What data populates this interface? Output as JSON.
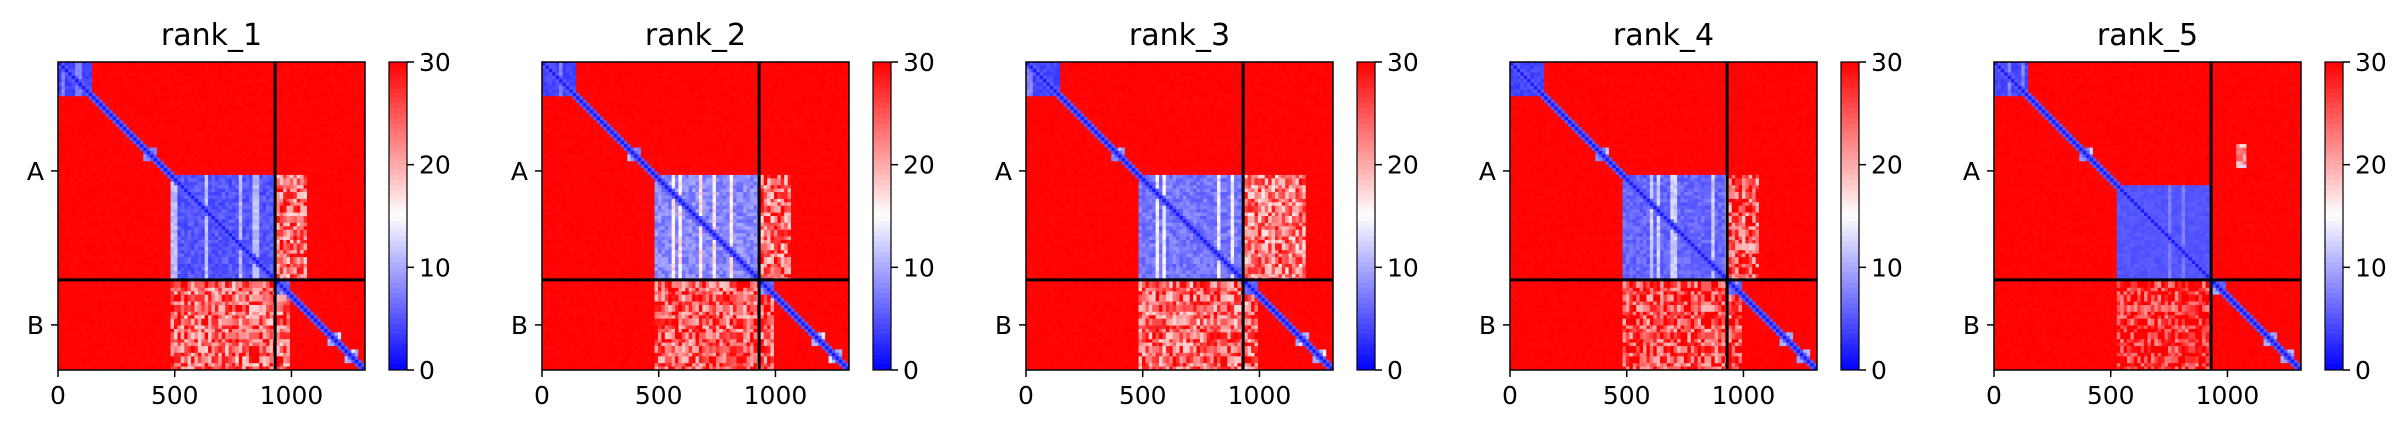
{
  "chart_data": {
    "type": "heatmap",
    "colormap": {
      "name": "bwr",
      "low_color": "#0000ff",
      "mid_color": "#ffffff",
      "high_color": "#ff0000",
      "vmin": 0,
      "vmax": 30,
      "ticks": [
        "0",
        "10",
        "20",
        "30"
      ]
    },
    "x_range": [
      0,
      1315
    ],
    "x_ticks": [
      {
        "value": 0,
        "label": "0"
      },
      {
        "value": 500,
        "label": "500"
      },
      {
        "value": 1000,
        "label": "1000"
      }
    ],
    "chains": [
      {
        "label": "A",
        "start": 0,
        "end": 930
      },
      {
        "label": "B",
        "start": 930,
        "end": 1315
      }
    ],
    "panels": [
      {
        "title": "rank_1",
        "blocks": [
          {
            "range": [
              0,
              150
            ],
            "mean": 4
          },
          {
            "range": [
              360,
              420
            ],
            "mean": 8
          },
          {
            "range": [
              480,
              930
            ],
            "mean": 5,
            "texture": 0.5
          },
          {
            "range": [
              930,
              1000
            ],
            "mean": 6
          },
          {
            "range": [
              1150,
              1210
            ],
            "mean": 10
          },
          {
            "range": [
              1230,
              1290
            ],
            "mean": 10
          }
        ],
        "off_blocks": [
          {
            "rows": [
              930,
              1315
            ],
            "cols": [
              480,
              1000
            ],
            "mean": 24
          },
          {
            "rows": [
              480,
              930
            ],
            "cols": [
              930,
              1060
            ],
            "mean": 24
          }
        ]
      },
      {
        "title": "rank_2",
        "blocks": [
          {
            "range": [
              0,
              150
            ],
            "mean": 4
          },
          {
            "range": [
              360,
              420
            ],
            "mean": 8
          },
          {
            "range": [
              480,
              930
            ],
            "mean": 8,
            "texture": 0.7
          },
          {
            "range": [
              930,
              1000
            ],
            "mean": 6
          },
          {
            "range": [
              1150,
              1210
            ],
            "mean": 10
          },
          {
            "range": [
              1230,
              1290
            ],
            "mean": 10
          }
        ],
        "off_blocks": [
          {
            "rows": [
              930,
              1315
            ],
            "cols": [
              480,
              1000
            ],
            "mean": 25
          },
          {
            "rows": [
              480,
              930
            ],
            "cols": [
              930,
              1060
            ],
            "mean": 24
          }
        ]
      },
      {
        "title": "rank_3",
        "blocks": [
          {
            "range": [
              0,
              150
            ],
            "mean": 4
          },
          {
            "range": [
              360,
              420
            ],
            "mean": 8
          },
          {
            "range": [
              480,
              930
            ],
            "mean": 7,
            "texture": 0.6
          },
          {
            "range": [
              930,
              1000
            ],
            "mean": 6
          },
          {
            "range": [
              1150,
              1210
            ],
            "mean": 10
          },
          {
            "range": [
              1230,
              1290
            ],
            "mean": 10
          }
        ],
        "off_blocks": [
          {
            "rows": [
              930,
              1315
            ],
            "cols": [
              480,
              1000
            ],
            "mean": 24
          },
          {
            "rows": [
              480,
              930
            ],
            "cols": [
              930,
              1200
            ],
            "mean": 23
          }
        ]
      },
      {
        "title": "rank_4",
        "blocks": [
          {
            "range": [
              0,
              150
            ],
            "mean": 4
          },
          {
            "range": [
              360,
              420
            ],
            "mean": 8
          },
          {
            "range": [
              480,
              930
            ],
            "mean": 6,
            "texture": 0.5
          },
          {
            "range": [
              930,
              1000
            ],
            "mean": 6
          },
          {
            "range": [
              1150,
              1210
            ],
            "mean": 10
          },
          {
            "range": [
              1230,
              1290
            ],
            "mean": 10
          }
        ],
        "off_blocks": [
          {
            "rows": [
              930,
              1315
            ],
            "cols": [
              480,
              1000
            ],
            "mean": 26
          },
          {
            "rows": [
              480,
              930
            ],
            "cols": [
              930,
              1060
            ],
            "mean": 25
          }
        ]
      },
      {
        "title": "rank_5",
        "blocks": [
          {
            "range": [
              0,
              150
            ],
            "mean": 4
          },
          {
            "range": [
              360,
              420
            ],
            "mean": 8
          },
          {
            "range": [
              530,
              930
            ],
            "mean": 5,
            "texture": 0.2
          },
          {
            "range": [
              930,
              1000
            ],
            "mean": 6
          },
          {
            "range": [
              1150,
              1210
            ],
            "mean": 10
          },
          {
            "range": [
              1230,
              1290
            ],
            "mean": 10
          }
        ],
        "off_blocks": [
          {
            "rows": [
              930,
              1315
            ],
            "cols": [
              530,
              930
            ],
            "mean": 28
          },
          {
            "rows": [
              350,
              450
            ],
            "cols": [
              1040,
              1080
            ],
            "mean": 18
          }
        ]
      }
    ],
    "cells": 90
  }
}
